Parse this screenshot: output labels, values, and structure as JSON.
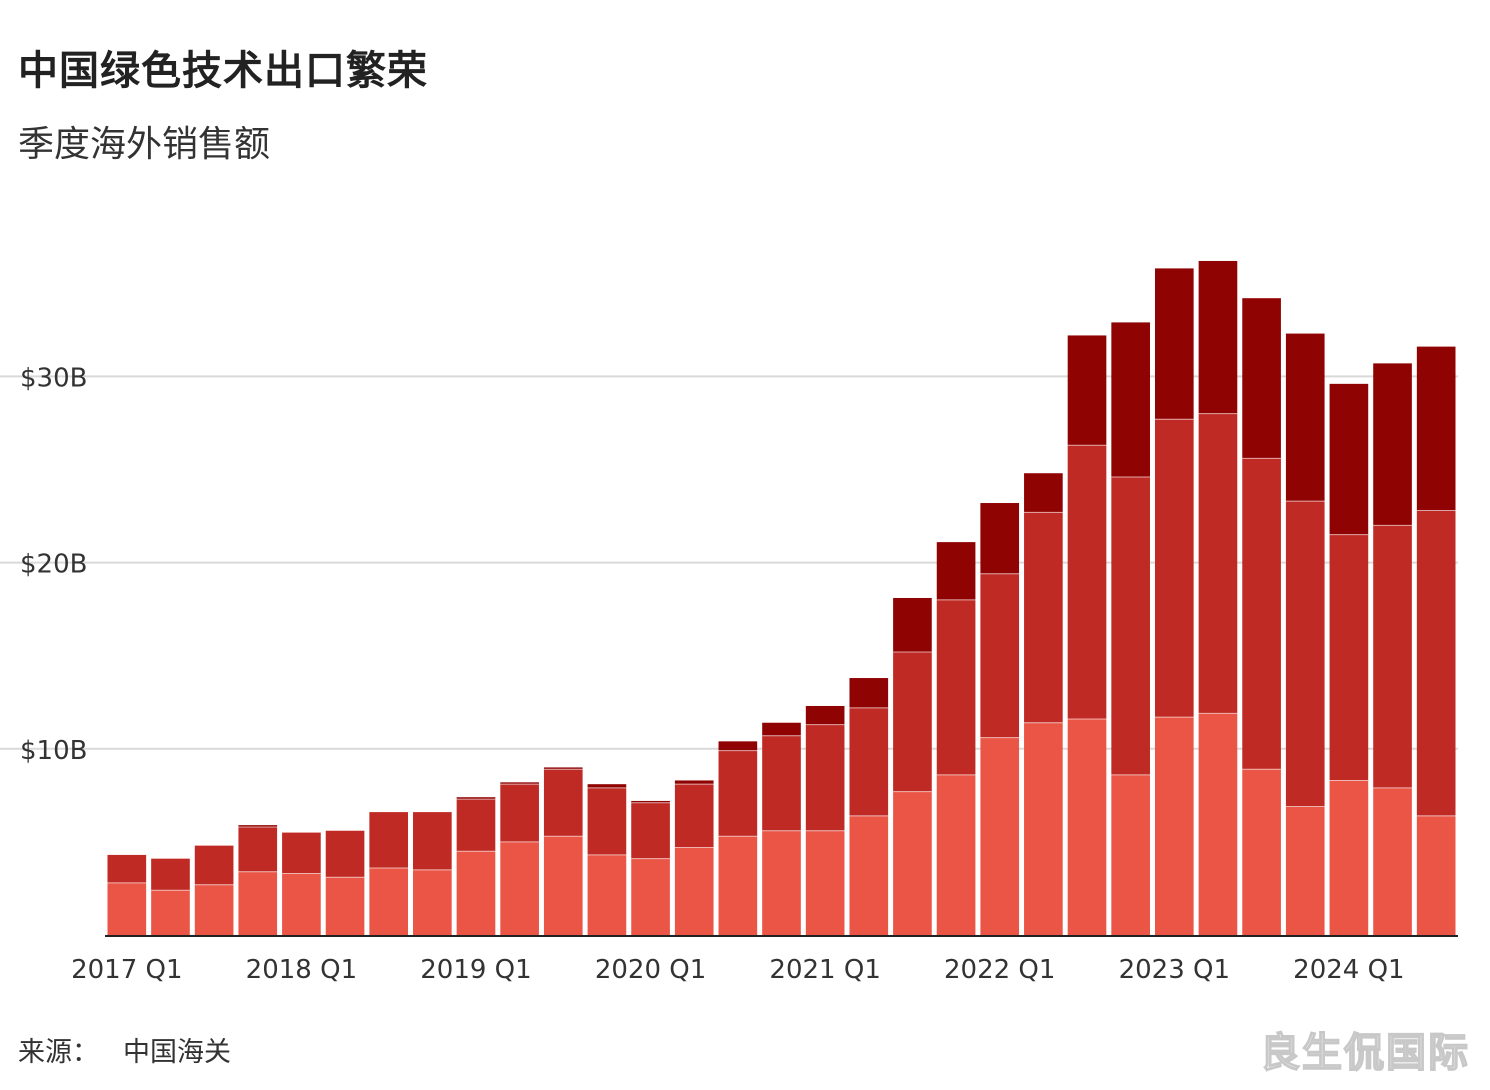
{
  "header": {
    "title": "中国绿色技术出口繁荣",
    "subtitle": "季度海外销售额"
  },
  "footer": {
    "source_label": "来源：",
    "source_value": "中国海关",
    "watermark": "良生侃国际"
  },
  "colors": {
    "series1": "#ea5546",
    "series2": "#c02a24",
    "series3": "#900303",
    "grid": "#d9d9d9",
    "axis": "#222222"
  },
  "chart_data": {
    "type": "bar",
    "stacked": true,
    "title": "中国绿色技术出口繁荣",
    "subtitle": "季度海外销售额",
    "xlabel": "",
    "ylabel": "",
    "ylim": [
      0,
      40
    ],
    "unit": "B USD",
    "grid": true,
    "yticks": [
      {
        "value": 10,
        "label": "$10B"
      },
      {
        "value": 20,
        "label": "$20B"
      },
      {
        "value": 30,
        "label": "$30B"
      }
    ],
    "xticks": [
      {
        "index": 0,
        "label": "2017 Q1"
      },
      {
        "index": 4,
        "label": "2018 Q1"
      },
      {
        "index": 8,
        "label": "2019 Q1"
      },
      {
        "index": 12,
        "label": "2020 Q1"
      },
      {
        "index": 16,
        "label": "2021 Q1"
      },
      {
        "index": 20,
        "label": "2022 Q1"
      },
      {
        "index": 24,
        "label": "2023 Q1"
      },
      {
        "index": 28,
        "label": "2024 Q1"
      }
    ],
    "categories": [
      "2017 Q1",
      "2017 Q2",
      "2017 Q3",
      "2017 Q4",
      "2018 Q1",
      "2018 Q2",
      "2018 Q3",
      "2018 Q4",
      "2019 Q1",
      "2019 Q2",
      "2019 Q3",
      "2019 Q4",
      "2020 Q1",
      "2020 Q2",
      "2020 Q3",
      "2020 Q4",
      "2021 Q1",
      "2021 Q2",
      "2021 Q3",
      "2021 Q4",
      "2022 Q1",
      "2022 Q2",
      "2022 Q3",
      "2022 Q4",
      "2023 Q1",
      "2023 Q2",
      "2023 Q3",
      "2023 Q4",
      "2024 Q1",
      "2024 Q2",
      "2024 Q3"
    ],
    "series": [
      {
        "color": "#ea5546",
        "values": [
          2.8,
          2.4,
          2.7,
          3.4,
          3.3,
          3.1,
          3.6,
          3.5,
          4.5,
          5.0,
          5.3,
          4.3,
          4.1,
          4.7,
          5.3,
          5.6,
          5.6,
          6.4,
          7.7,
          8.6,
          10.6,
          11.4,
          11.6,
          8.6,
          11.7,
          11.9,
          8.9,
          6.9,
          8.3,
          7.9,
          6.4
        ]
      },
      {
        "color": "#c02a24",
        "values": [
          1.5,
          1.7,
          2.1,
          2.4,
          2.2,
          2.5,
          3.0,
          3.1,
          2.8,
          3.1,
          3.6,
          3.6,
          3.0,
          3.4,
          4.6,
          5.1,
          5.7,
          5.8,
          7.5,
          9.4,
          8.8,
          11.3,
          14.7,
          16.0,
          16.0,
          16.1,
          16.7,
          16.4,
          13.2,
          14.1,
          16.4
        ]
      },
      {
        "color": "#900303",
        "values": [
          0.0,
          0.0,
          0.0,
          0.1,
          0.0,
          0.0,
          0.0,
          0.0,
          0.1,
          0.1,
          0.1,
          0.2,
          0.1,
          0.2,
          0.5,
          0.7,
          1.0,
          1.6,
          2.9,
          3.1,
          3.8,
          2.1,
          5.9,
          8.3,
          8.1,
          8.2,
          8.6,
          9.0,
          8.1,
          8.7,
          8.8
        ]
      }
    ]
  }
}
